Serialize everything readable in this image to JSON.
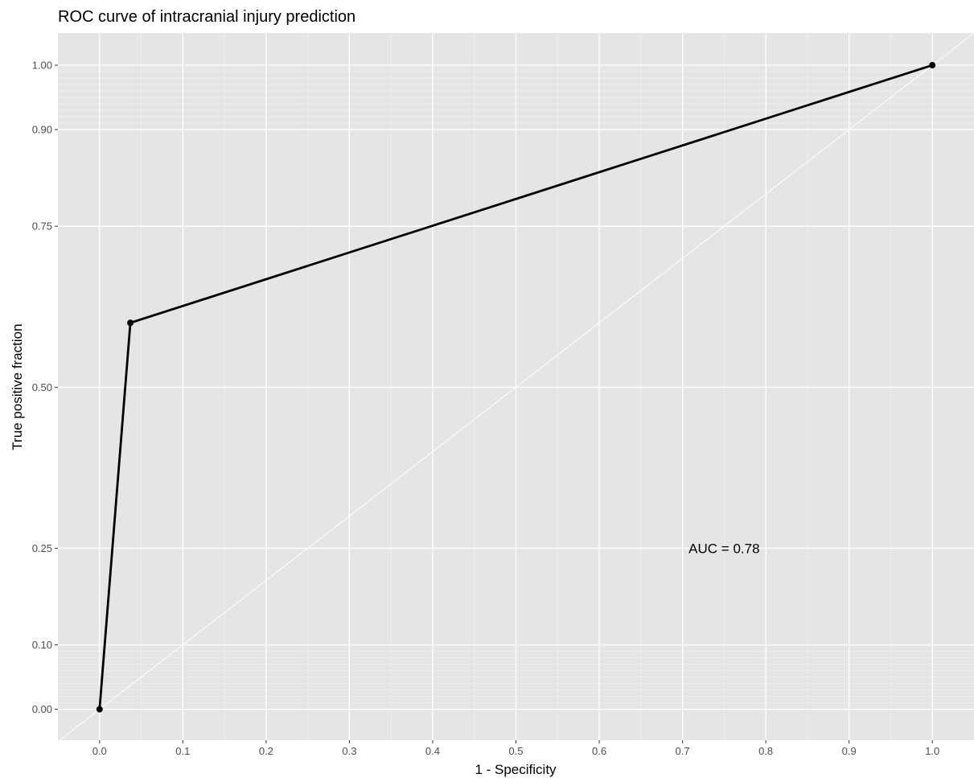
{
  "chart_data": {
    "type": "line",
    "title": "ROC curve of intracranial injury prediction",
    "xlabel": "1 - Specificity",
    "ylabel": "True positive fraction",
    "xlim": [
      -0.05,
      1.05
    ],
    "ylim": [
      -0.048,
      1.05
    ],
    "x_ticks": [
      0.0,
      0.1,
      0.2,
      0.3,
      0.4,
      0.5,
      0.6,
      0.7,
      0.8,
      0.9,
      1.0
    ],
    "x_tick_labels": [
      "0.0",
      "0.1",
      "0.2",
      "0.3",
      "0.4",
      "0.5",
      "0.6",
      "0.7",
      "0.8",
      "0.9",
      "1.0"
    ],
    "y_ticks": [
      0.0,
      0.1,
      0.25,
      0.5,
      0.75,
      0.9,
      1.0
    ],
    "y_tick_labels": [
      "0.00",
      "0.10",
      "0.25",
      "0.50",
      "0.75",
      "0.90",
      "1.00"
    ],
    "y_minor_ticks": [
      0.01,
      0.02,
      0.03,
      0.04,
      0.05,
      0.06,
      0.07,
      0.08,
      0.09,
      0.91,
      0.92,
      0.93,
      0.94,
      0.95,
      0.96,
      0.97,
      0.98,
      0.99
    ],
    "grid": true,
    "series": [
      {
        "x": [
          0.0,
          0.037,
          1.0
        ],
        "y": [
          0.0,
          0.6,
          1.0
        ],
        "color": "#000000"
      }
    ],
    "reference_line": {
      "x": [
        -0.05,
        1.05
      ],
      "y": [
        -0.05,
        1.05
      ],
      "color": "#ffffff"
    },
    "annotation": {
      "text": "AUC = 0.78",
      "x": 0.75,
      "y": 0.25
    },
    "panel_background": "#e5e5e5"
  }
}
